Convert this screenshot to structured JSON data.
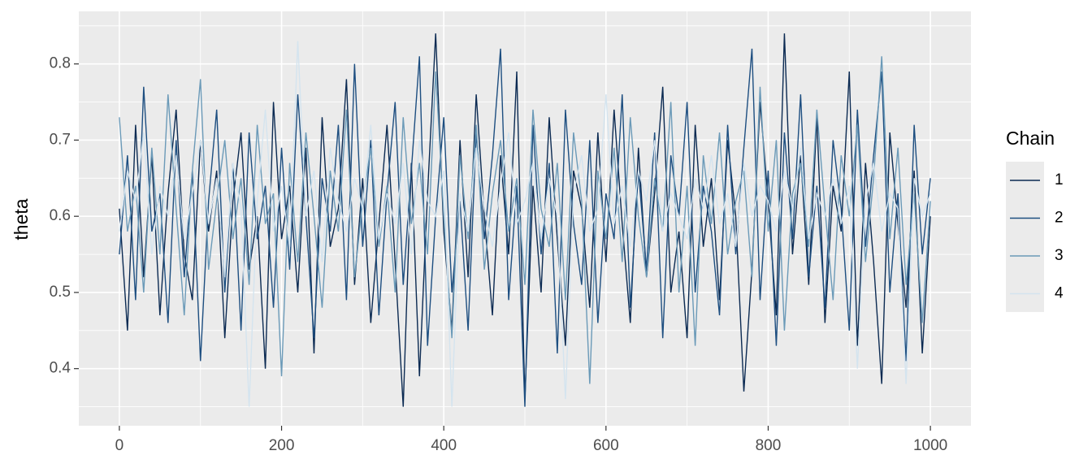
{
  "chart_data": {
    "type": "line",
    "y_label": "theta",
    "legend_title": "Chain",
    "legend": "right",
    "grid": true,
    "x": [
      0,
      10,
      20,
      30,
      40,
      50,
      60,
      70,
      80,
      90,
      100,
      110,
      120,
      130,
      140,
      150,
      160,
      170,
      180,
      190,
      200,
      210,
      220,
      230,
      240,
      250,
      260,
      270,
      280,
      290,
      300,
      310,
      320,
      330,
      340,
      350,
      360,
      370,
      380,
      390,
      400,
      410,
      420,
      430,
      440,
      450,
      460,
      470,
      480,
      490,
      500,
      510,
      520,
      530,
      540,
      550,
      560,
      570,
      580,
      590,
      600,
      610,
      620,
      630,
      640,
      650,
      660,
      670,
      680,
      690,
      700,
      710,
      720,
      730,
      740,
      750,
      760,
      770,
      780,
      790,
      800,
      810,
      820,
      830,
      840,
      850,
      860,
      870,
      880,
      890,
      900,
      910,
      920,
      930,
      940,
      950,
      960,
      970,
      980,
      990,
      1000
    ],
    "series": [
      {
        "name": "1",
        "color": "#0b2a52",
        "values": [
          0.61,
          0.45,
          0.72,
          0.52,
          0.68,
          0.47,
          0.63,
          0.74,
          0.55,
          0.49,
          0.7,
          0.58,
          0.66,
          0.44,
          0.62,
          0.71,
          0.53,
          0.6,
          0.4,
          0.75,
          0.57,
          0.64,
          0.5,
          0.69,
          0.42,
          0.73,
          0.56,
          0.61,
          0.78,
          0.51,
          0.65,
          0.46,
          0.59,
          0.72,
          0.54,
          0.35,
          0.67,
          0.39,
          0.63,
          0.84,
          0.58,
          0.45,
          0.7,
          0.52,
          0.76,
          0.6,
          0.47,
          0.68,
          0.55,
          0.79,
          0.36,
          0.64,
          0.5,
          0.73,
          0.57,
          0.43,
          0.66,
          0.61,
          0.48,
          0.71,
          0.54,
          0.74,
          0.59,
          0.46,
          0.69,
          0.52,
          0.63,
          0.77,
          0.5,
          0.58,
          0.44,
          0.72,
          0.56,
          0.65,
          0.49,
          0.7,
          0.6,
          0.37,
          0.53,
          0.75,
          0.62,
          0.47,
          0.84,
          0.55,
          0.68,
          0.51,
          0.73,
          0.46,
          0.64,
          0.58,
          0.79,
          0.43,
          0.67,
          0.54,
          0.38,
          0.71,
          0.59,
          0.48,
          0.66,
          0.42,
          0.6
        ]
      },
      {
        "name": "2",
        "color": "#1d4e80",
        "values": [
          0.55,
          0.68,
          0.49,
          0.77,
          0.58,
          0.63,
          0.46,
          0.7,
          0.52,
          0.66,
          0.41,
          0.62,
          0.74,
          0.5,
          0.67,
          0.45,
          0.71,
          0.57,
          0.64,
          0.48,
          0.69,
          0.53,
          0.76,
          0.6,
          0.44,
          0.65,
          0.58,
          0.72,
          0.49,
          0.8,
          0.56,
          0.7,
          0.47,
          0.63,
          0.75,
          0.51,
          0.66,
          0.81,
          0.43,
          0.6,
          0.73,
          0.5,
          0.62,
          0.45,
          0.71,
          0.57,
          0.68,
          0.82,
          0.49,
          0.64,
          0.35,
          0.72,
          0.55,
          0.67,
          0.42,
          0.74,
          0.59,
          0.51,
          0.7,
          0.46,
          0.63,
          0.57,
          0.76,
          0.48,
          0.66,
          0.53,
          0.71,
          0.44,
          0.68,
          0.6,
          0.75,
          0.5,
          0.64,
          0.58,
          0.47,
          0.72,
          0.55,
          0.69,
          0.82,
          0.49,
          0.66,
          0.43,
          0.71,
          0.57,
          0.76,
          0.52,
          0.64,
          0.48,
          0.7,
          0.61,
          0.45,
          0.74,
          0.56,
          0.68,
          0.79,
          0.5,
          0.63,
          0.41,
          0.72,
          0.55,
          0.65
        ]
      },
      {
        "name": "3",
        "color": "#6b9ab8",
        "values": [
          0.73,
          0.58,
          0.64,
          0.5,
          0.69,
          0.55,
          0.76,
          0.61,
          0.47,
          0.66,
          0.78,
          0.53,
          0.62,
          0.7,
          0.57,
          0.65,
          0.51,
          0.72,
          0.59,
          0.63,
          0.39,
          0.67,
          0.54,
          0.71,
          0.6,
          0.48,
          0.66,
          0.58,
          0.74,
          0.52,
          0.62,
          0.69,
          0.56,
          0.64,
          0.5,
          0.73,
          0.59,
          0.67,
          0.55,
          0.79,
          0.6,
          0.44,
          0.68,
          0.57,
          0.72,
          0.53,
          0.63,
          0.7,
          0.58,
          0.65,
          0.51,
          0.74,
          0.61,
          0.56,
          0.67,
          0.49,
          0.71,
          0.62,
          0.38,
          0.66,
          0.57,
          0.69,
          0.54,
          0.73,
          0.6,
          0.52,
          0.65,
          0.58,
          0.75,
          0.5,
          0.64,
          0.43,
          0.68,
          0.59,
          0.71,
          0.55,
          0.62,
          0.66,
          0.52,
          0.77,
          0.58,
          0.7,
          0.45,
          0.63,
          0.67,
          0.56,
          0.74,
          0.61,
          0.49,
          0.68,
          0.6,
          0.72,
          0.54,
          0.65,
          0.81,
          0.57,
          0.69,
          0.51,
          0.63,
          0.46,
          0.62
        ]
      },
      {
        "name": "4",
        "color": "#d4e4ef",
        "values": [
          0.58,
          0.66,
          0.62,
          0.71,
          0.55,
          0.64,
          0.6,
          0.68,
          0.57,
          0.63,
          0.7,
          0.59,
          0.65,
          0.52,
          0.67,
          0.61,
          0.35,
          0.62,
          0.74,
          0.58,
          0.64,
          0.56,
          0.83,
          0.6,
          0.66,
          0.54,
          0.69,
          0.62,
          0.58,
          0.65,
          0.61,
          0.72,
          0.57,
          0.63,
          0.59,
          0.67,
          0.55,
          0.7,
          0.62,
          0.6,
          0.66,
          0.35,
          0.63,
          0.58,
          0.69,
          0.61,
          0.56,
          0.64,
          0.71,
          0.59,
          0.62,
          0.67,
          0.57,
          0.65,
          0.6,
          0.36,
          0.63,
          0.68,
          0.58,
          0.61,
          0.76,
          0.59,
          0.64,
          0.56,
          0.66,
          0.62,
          0.7,
          0.58,
          0.63,
          0.6,
          0.57,
          0.65,
          0.61,
          0.68,
          0.59,
          0.63,
          0.56,
          0.67,
          0.6,
          0.64,
          0.62,
          0.58,
          0.66,
          0.61,
          0.69,
          0.57,
          0.63,
          0.6,
          0.65,
          0.59,
          0.64,
          0.4,
          0.62,
          0.67,
          0.58,
          0.63,
          0.61,
          0.38,
          0.65,
          0.6,
          0.63
        ]
      }
    ],
    "xlim": [
      -50,
      1050
    ],
    "ylim": [
      0.325,
      0.869
    ],
    "xticks": [
      0,
      200,
      400,
      600,
      800,
      1000
    ],
    "yticks": [
      0.4,
      0.5,
      0.6,
      0.7,
      0.8
    ],
    "x_minor_ticks": [
      100,
      300,
      500,
      700,
      900
    ],
    "y_minor_ticks": [
      0.35,
      0.45,
      0.55,
      0.65,
      0.75,
      0.85
    ]
  }
}
